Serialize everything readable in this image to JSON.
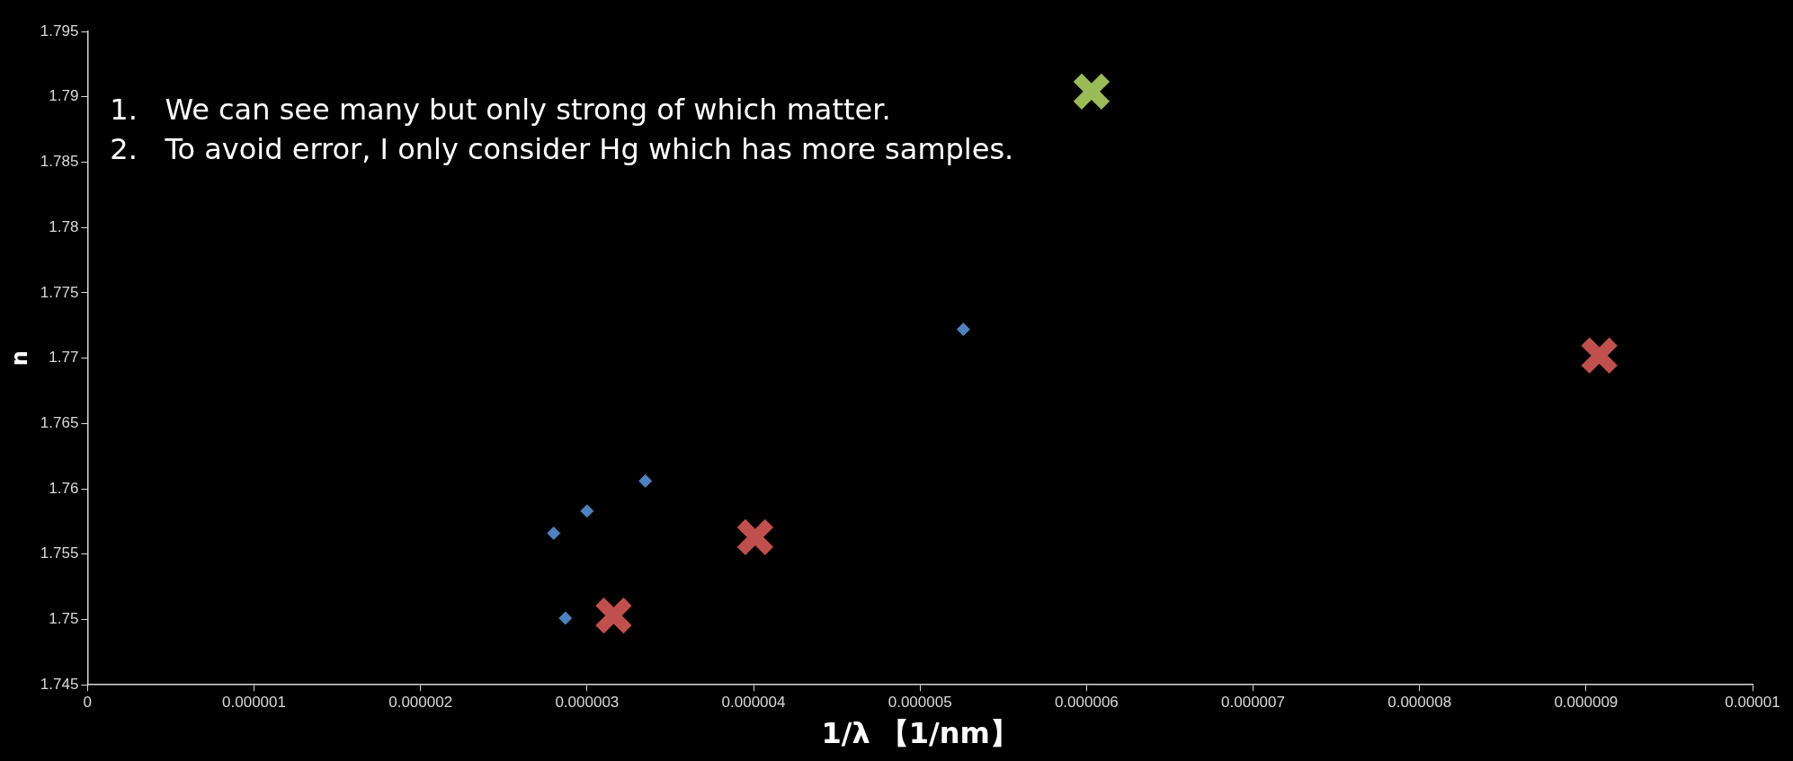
{
  "chart_data": {
    "type": "scatter",
    "xlabel": "1/λ 【1/nm】",
    "ylabel": "n",
    "xlim": [
      0,
      1e-05
    ],
    "xticks": [
      0,
      {
        "value": 1e-06,
        "label": "0.000001"
      },
      {
        "value": 2e-06,
        "label": "0.000002"
      },
      {
        "value": 3e-06,
        "label": "0.000003"
      },
      {
        "value": 4e-06,
        "label": "0.000004"
      },
      {
        "value": 5e-06,
        "label": "0.000005"
      },
      {
        "value": 6e-06,
        "label": "0.000006"
      },
      {
        "value": 7e-06,
        "label": "0.000007"
      },
      {
        "value": 8e-06,
        "label": "0.000008"
      },
      {
        "value": 9e-06,
        "label": "0.000009"
      },
      {
        "value": 1e-05,
        "label": "0.00001"
      }
    ],
    "ylim": [
      1.745,
      1.795
    ],
    "yticks": [
      1.745,
      1.75,
      1.755,
      1.76,
      1.765,
      1.77,
      1.775,
      1.78,
      1.785,
      1.79,
      1.795
    ],
    "grid": false,
    "legend": false,
    "series": [
      {
        "color": "#4f81bd",
        "marker": "diamond",
        "x": [
          2.8e-06,
          2.87e-06,
          3e-06,
          3.35e-06,
          5.26e-06
        ],
        "values": [
          1.7566,
          1.7501,
          1.7583,
          1.7606,
          1.7722
        ]
      },
      {
        "color": "#c0504d",
        "marker": "cross",
        "x": [
          3.16e-06,
          4.01e-06,
          9.08e-06
        ],
        "values": [
          1.7503,
          1.7563,
          1.7702
        ]
      },
      {
        "color": "#9bbb59",
        "marker": "cross",
        "x": [
          6.03e-06
        ],
        "values": [
          1.7904
        ]
      }
    ],
    "annotations": [
      "1.   We can see many but only strong of which matter.",
      "2.   To avoid error, I only consider Hg which has more samples."
    ]
  }
}
